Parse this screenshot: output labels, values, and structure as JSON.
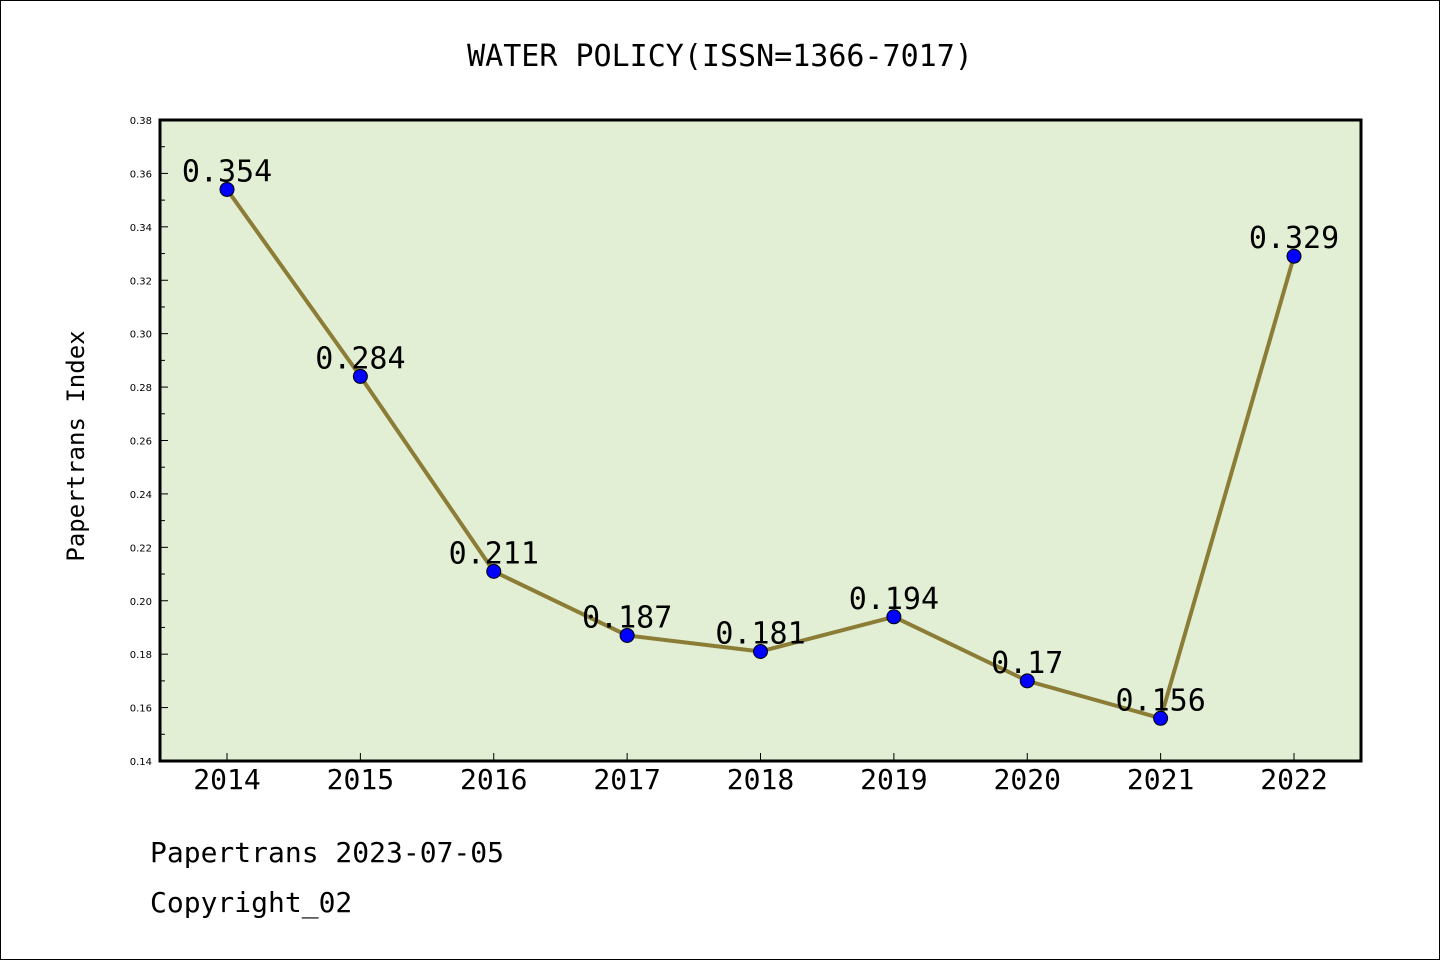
{
  "chart_data": {
    "type": "line",
    "title": "WATER POLICY(ISSN=1366-7017)",
    "ylabel": "Papertrans Index",
    "xlabel": "",
    "categories": [
      "2014",
      "2015",
      "2016",
      "2017",
      "2018",
      "2019",
      "2020",
      "2021",
      "2022"
    ],
    "series": [
      {
        "values": [
          0.354,
          0.284,
          0.211,
          0.187,
          0.181,
          0.194,
          0.17,
          0.156,
          0.329
        ],
        "labels": [
          "0.354",
          "0.284",
          "0.211",
          "0.187",
          "0.181",
          "0.194",
          "0.17",
          "0.156",
          "0.329"
        ]
      }
    ],
    "ylim": [
      0.14,
      0.38
    ],
    "yticks": [
      "0.14",
      "0.16",
      "0.18",
      "0.20",
      "0.22",
      "0.24",
      "0.26",
      "0.28",
      "0.30",
      "0.32",
      "0.34",
      "0.36",
      "0.38"
    ],
    "grid": false,
    "colors": {
      "plot_background": "#e2efd4",
      "line": "#8b7d35",
      "marker": "#0000ff"
    }
  },
  "footer": {
    "line1": "Papertrans 2023-07-05",
    "line2": "Copyright_02"
  }
}
